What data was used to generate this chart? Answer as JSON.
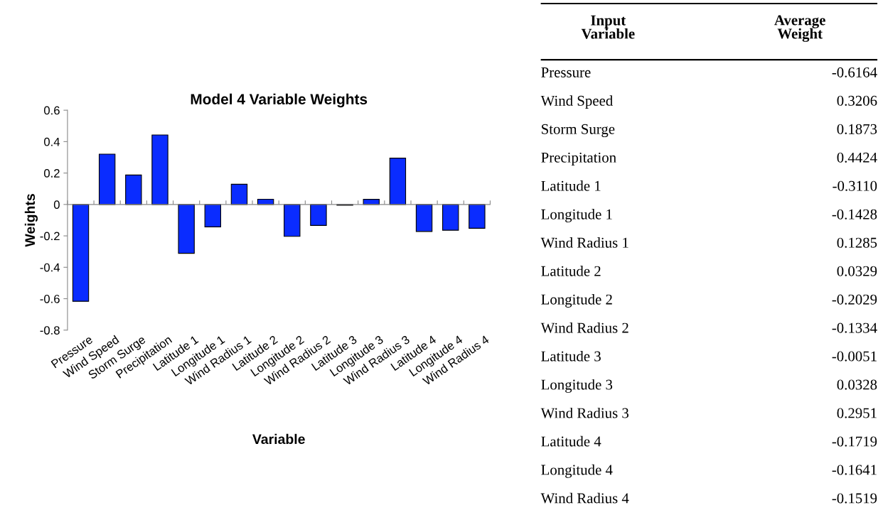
{
  "chart_data": [
    {
      "type": "bar",
      "title": "Model 4 Variable Weights",
      "xlabel": "Variable",
      "ylabel": "Weights",
      "categories": [
        "Pressure",
        "Wind Speed",
        "Storm Surge",
        "Precipitation",
        "Latitude 1",
        "Longitude 1",
        "Wind Radius 1",
        "Latitude 2",
        "Longitude 2",
        "Wind Radius 2",
        "Latitude 3",
        "Longitude 3",
        "Wind Radius 3",
        "Latitude 4",
        "Longitude 4",
        "Wind Radius 4"
      ],
      "values": [
        -0.6164,
        0.3206,
        0.1873,
        0.4424,
        -0.311,
        -0.1428,
        0.1285,
        0.0329,
        -0.2029,
        -0.1334,
        -0.0051,
        0.0328,
        0.2951,
        -0.1719,
        -0.1641,
        -0.1519
      ],
      "color": "#0a2cff",
      "ylim": [
        -0.8,
        0.6
      ],
      "yticks": [
        -0.8,
        -0.6,
        -0.4,
        -0.2,
        0,
        0.2,
        0.4,
        0.6
      ]
    },
    {
      "type": "other",
      "annotations": [
        "Input Variable",
        "Average Weight",
        "Pressure",
        "-0.6164",
        "Wind Speed",
        "0.3206",
        "Storm Surge",
        "0.1873",
        "Precipitation",
        "0.4424",
        "Latitude 1",
        "-0.3110",
        "Longitude 1",
        "-0.1428",
        "Wind Radius 1",
        "0.1285",
        "Latitude 2",
        "0.0329",
        "Longitude 2",
        "-0.2029",
        "Wind Radius 2",
        "-0.1334",
        "Latitude 3",
        "-0.0051",
        "Longitude 3",
        "0.0328",
        "Wind Radius 3",
        "0.2951",
        "Latitude 4",
        "-0.1719",
        "Longitude 4",
        "-0.1641",
        "Wind Radius 4",
        "-0.1519"
      ]
    }
  ]
}
